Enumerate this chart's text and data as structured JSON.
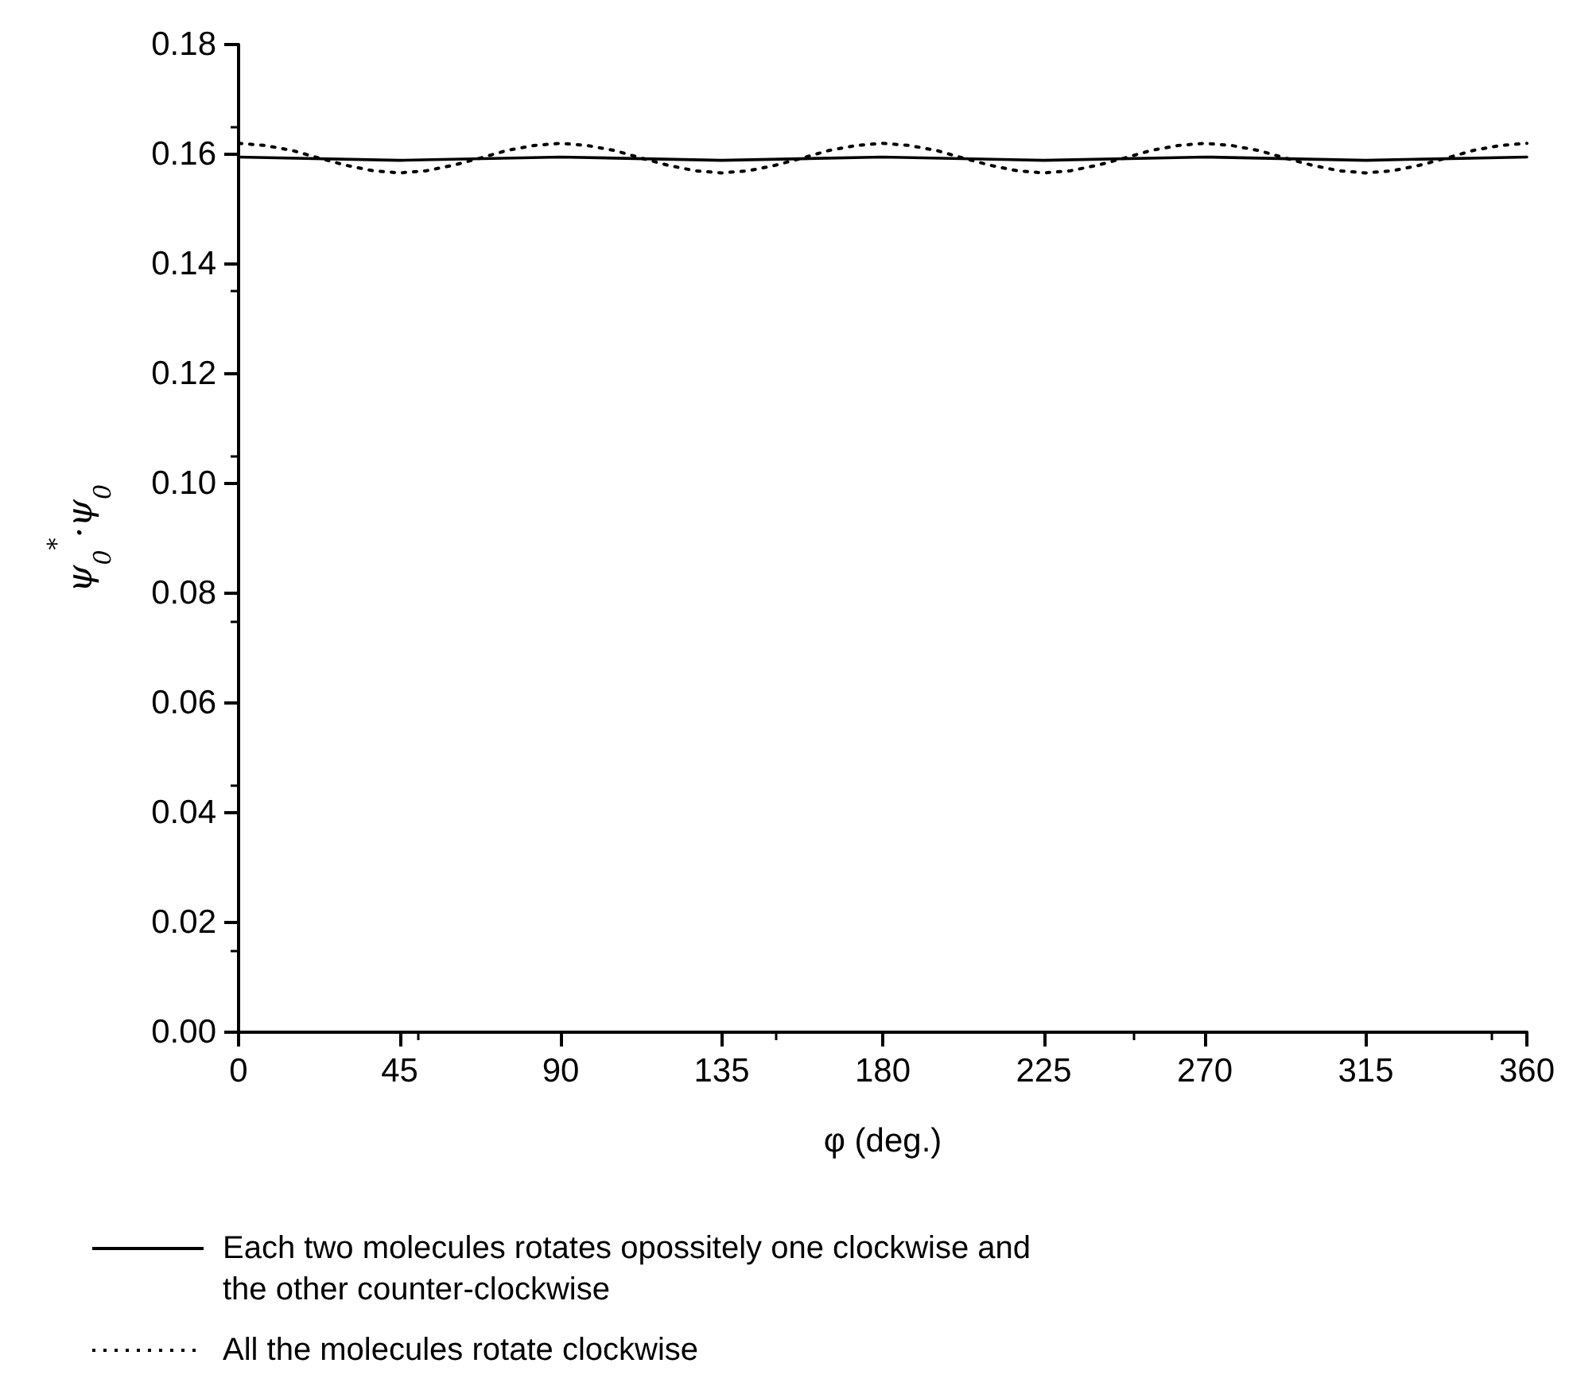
{
  "chart_data": {
    "type": "line",
    "xlabel": "φ (deg.)",
    "ylabel": "ψ$_{0}$$^{*}$·ψ$_{0}$",
    "xlim": [
      0,
      360
    ],
    "xticks": [
      0,
      45,
      90,
      135,
      180,
      225,
      270,
      315,
      360
    ],
    "ylim": [
      0,
      0.18
    ],
    "yticks": [
      {
        "value": 0,
        "label": "0.00"
      },
      0.02,
      0.04,
      0.06,
      0.08,
      {
        "value": 0.1,
        "label": "0.10"
      },
      0.12,
      0.14,
      0.16,
      0.18
    ],
    "grid": false,
    "legend": "bottom",
    "marker": "none",
    "x": [
      0,
      45,
      90,
      135,
      180,
      225,
      270,
      315,
      360
    ],
    "series": [
      {
        "name": "Each two molecules rotates opossitely one clockwise and the other counter-clockwise",
        "color": "#000000",
        "line_style": "solid",
        "values": [
          0.1595,
          0.1589,
          0.1595,
          0.1589,
          0.1595,
          0.1589,
          0.1595,
          0.1589,
          0.1595
        ]
      },
      {
        "name": "All the molecules rotate clockwise",
        "color": "#000000",
        "line_style": "dotted",
        "x": [
          0,
          7.5,
          15,
          22.5,
          30,
          37.5,
          45,
          52.5,
          60,
          67.5,
          75,
          82.5,
          90,
          97.5,
          105,
          112.5,
          120,
          127.5,
          135,
          142.5,
          150,
          157.5,
          165,
          172.5,
          180,
          187.5,
          195,
          202.5,
          210,
          217.5,
          225,
          232.5,
          240,
          247.5,
          255,
          262.5,
          270,
          277.5,
          285,
          292.5,
          300,
          307.5,
          315,
          322.5,
          330,
          337.5,
          345,
          352.5,
          360
        ],
        "values": [
          0.162,
          0.1616,
          0.1607,
          0.1593,
          0.158,
          0.157,
          0.1566,
          0.157,
          0.158,
          0.1593,
          0.1607,
          0.1616,
          0.162,
          0.1616,
          0.1607,
          0.1593,
          0.158,
          0.157,
          0.1566,
          0.157,
          0.158,
          0.1593,
          0.1607,
          0.1616,
          0.162,
          0.1616,
          0.1607,
          0.1593,
          0.158,
          0.157,
          0.1566,
          0.157,
          0.158,
          0.1593,
          0.1607,
          0.1616,
          0.162,
          0.1616,
          0.1607,
          0.1593,
          0.158,
          0.157,
          0.1566,
          0.157,
          0.158,
          0.1593,
          0.1607,
          0.1616,
          0.162
        ]
      }
    ]
  }
}
